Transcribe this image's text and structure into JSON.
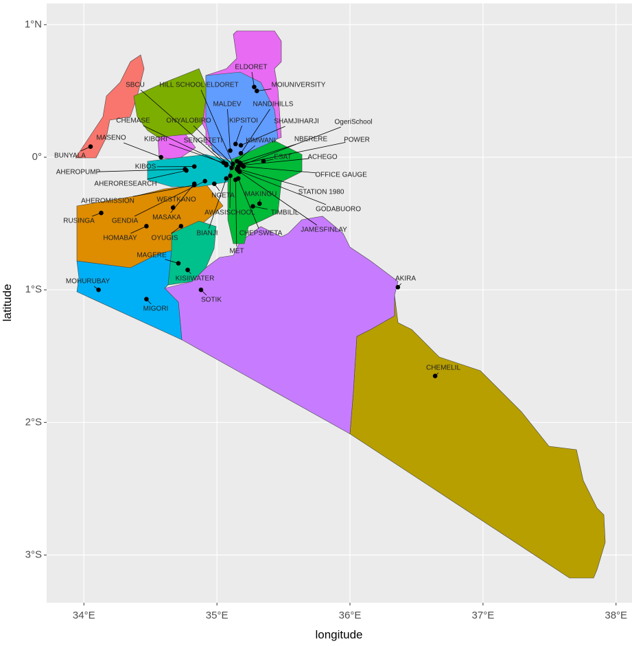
{
  "chart_data": {
    "type": "scatter",
    "x_label": "longitude",
    "y_label": "latitude",
    "xlim": [
      33.72,
      38.12
    ],
    "ylim": [
      -3.36,
      1.16
    ],
    "xticks": [
      {
        "value": 34,
        "label": "34°E"
      },
      {
        "value": 35,
        "label": "35°E"
      },
      {
        "value": 36,
        "label": "36°E"
      },
      {
        "value": 37,
        "label": "37°E"
      },
      {
        "value": 38,
        "label": "38°E"
      }
    ],
    "yticks": [
      {
        "value": 1,
        "label": "1°N"
      },
      {
        "value": 0,
        "label": "0°"
      },
      {
        "value": -1,
        "label": "1°S"
      },
      {
        "value": -2,
        "label": "2°S"
      },
      {
        "value": -3,
        "label": "3°S"
      }
    ],
    "grid": true,
    "color": "#000000",
    "labels": [
      "ELDORET",
      "MOIUNIVERSITY",
      "HILL SCHOOL ELDORET",
      "SBCU",
      "NANDIHILLS",
      "MALDEV",
      "CHEMASE",
      "ONYALOBIRO",
      "KIPSITOI",
      "SHAMJIHARJI",
      "OgeriSchool",
      "MASENO",
      "KIBORI",
      "SENGETETI",
      "KIMWANI",
      "NBERERE",
      "POWER",
      "BUNYALA",
      "KIBOS",
      "ESAT",
      "ACHEGO",
      "AHEROPUMP",
      "AHERORESEARCH",
      "OFFICE GAUGE",
      "STATION 1980",
      "AHEROMISSION",
      "WESTKANO",
      "NGETA",
      "MAKINGU",
      "GODABUORO",
      "RUSINGA",
      "GENDIA",
      "MASAKA",
      "AWASISCHOOL",
      "TIMBILIL",
      "JAMESFINLAY",
      "HOMABAY",
      "OYUGIS",
      "BIANJI",
      "CHEPSWETA",
      "MET",
      "MAGERE",
      "KISIIWATER",
      "MOHURUBAY",
      "SOTIK",
      "MIGORI",
      "AKIRA",
      "CHEMELIL"
    ],
    "x": [
      35.28,
      35.3,
      35.12,
      35.05,
      35.18,
      35.1,
      35.07,
      35.15,
      35.14,
      35.18,
      35.16,
      34.58,
      35.07,
      35.11,
      35.15,
      35.17,
      35.18,
      34.05,
      34.83,
      35.35,
      35.19,
      34.76,
      34.77,
      35.2,
      35.16,
      34.83,
      34.67,
      34.98,
      35.32,
      35.16,
      34.13,
      34.91,
      34.83,
      35.1,
      35.27,
      35.17,
      34.47,
      34.73,
      35.07,
      35.16,
      35.14,
      34.71,
      34.78,
      34.11,
      34.88,
      34.47,
      36.36,
      36.64
    ],
    "values": [
      0.53,
      0.5,
      -0.05,
      -0.04,
      0.03,
      0.05,
      -0.06,
      -0.09,
      0.1,
      0.09,
      -0.07,
      0.0,
      -0.05,
      -0.08,
      -0.03,
      -0.04,
      -0.05,
      0.08,
      -0.07,
      -0.03,
      -0.06,
      -0.09,
      -0.1,
      -0.07,
      -0.09,
      -0.21,
      -0.38,
      -0.2,
      -0.35,
      -0.1,
      -0.42,
      -0.18,
      -0.2,
      -0.14,
      -0.37,
      -0.11,
      -0.52,
      -0.52,
      -0.16,
      -0.16,
      -0.17,
      -0.8,
      -0.85,
      -1.0,
      -1.0,
      -1.07,
      -0.98,
      -1.65
    ]
  }
}
